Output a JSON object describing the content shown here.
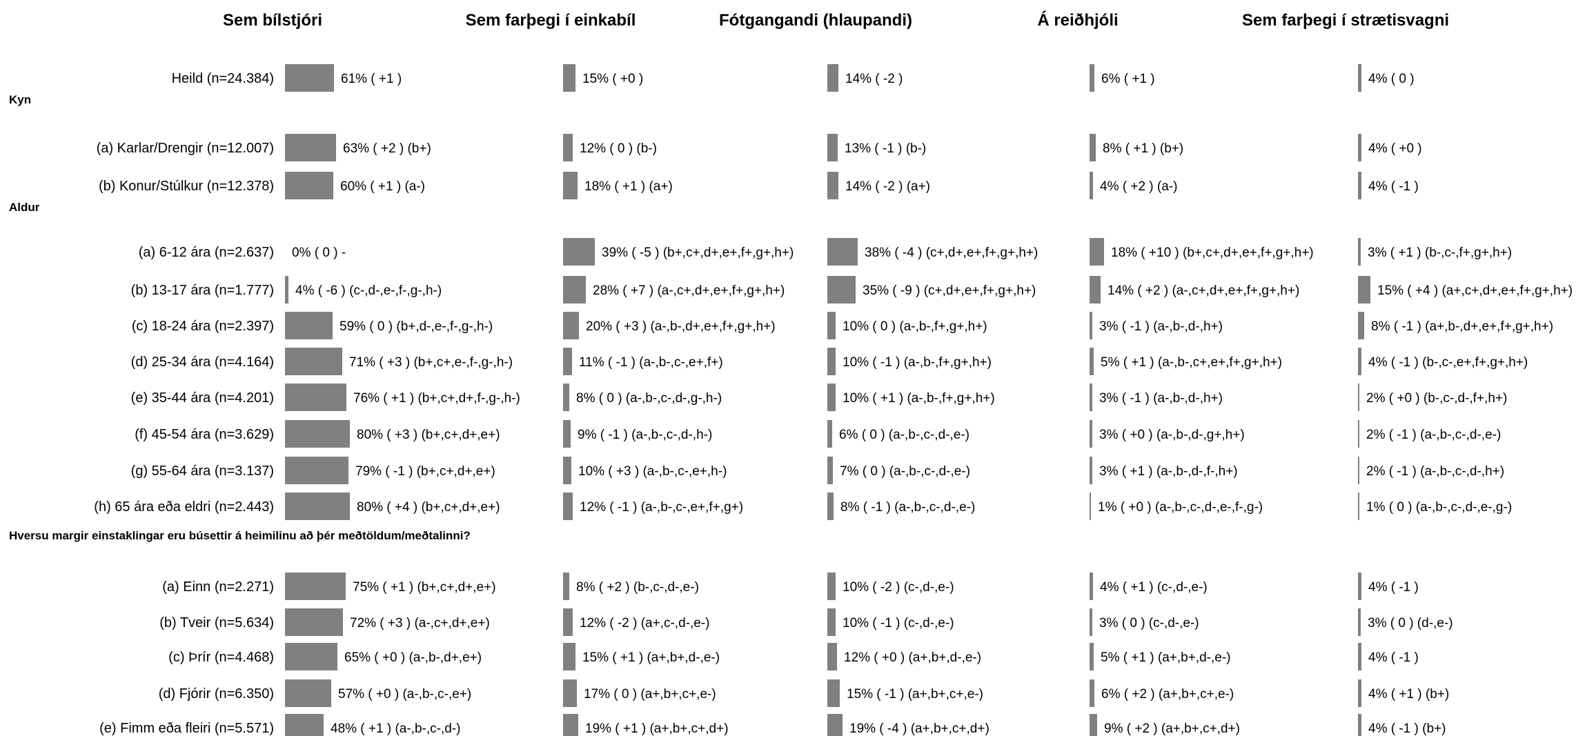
{
  "chart_data": {
    "type": "bar",
    "orientation": "horizontal",
    "columns": [
      {
        "key": "bilstjori",
        "label": "Sem bílstjóri"
      },
      {
        "key": "einkabil",
        "label": "Sem farþegi í einkabíl"
      },
      {
        "key": "fotgangandi",
        "label": "Fótgangandi (hlaupandi)"
      },
      {
        "key": "reidhjol",
        "label": "Á reiðhjóli"
      },
      {
        "key": "straetisvagn",
        "label": "Sem farþegi í strætisvagni"
      }
    ],
    "groups": [
      {
        "label": "",
        "rows": [
          {
            "label": "Heild (n=24.384)",
            "cells": [
              {
                "value": 61,
                "text": "61% ( +1 )"
              },
              {
                "value": 15,
                "text": "15% ( +0 )"
              },
              {
                "value": 14,
                "text": "14% ( -2 )"
              },
              {
                "value": 6,
                "text": "6% ( +1 )"
              },
              {
                "value": 4,
                "text": "4% ( 0 )"
              }
            ]
          }
        ]
      },
      {
        "label": "Kyn",
        "rows": [
          {
            "label": "(a) Karlar/Drengir (n=12.007)",
            "cells": [
              {
                "value": 63,
                "text": "63% ( +2 ) (b+)"
              },
              {
                "value": 12,
                "text": "12% ( 0 ) (b-)"
              },
              {
                "value": 13,
                "text": "13% ( -1 ) (b-)"
              },
              {
                "value": 8,
                "text": "8% ( +1 ) (b+)"
              },
              {
                "value": 4,
                "text": "4% ( +0 )"
              }
            ]
          },
          {
            "label": "(b) Konur/Stúlkur (n=12.378)",
            "cells": [
              {
                "value": 60,
                "text": "60% ( +1 ) (a-)"
              },
              {
                "value": 18,
                "text": "18% ( +1 ) (a+)"
              },
              {
                "value": 14,
                "text": "14% ( -2 ) (a+)"
              },
              {
                "value": 4,
                "text": "4% ( +2 ) (a-)"
              },
              {
                "value": 4,
                "text": "4% ( -1 )"
              }
            ]
          }
        ]
      },
      {
        "label": "Aldur",
        "rows": [
          {
            "label": "(a) 6-12 ára (n=2.637)",
            "cells": [
              {
                "value": 0,
                "text": "0% ( 0 ) -"
              },
              {
                "value": 39,
                "text": "39% ( -5 ) (b+,c+,d+,e+,f+,g+,h+)"
              },
              {
                "value": 38,
                "text": "38% ( -4 ) (c+,d+,e+,f+,g+,h+)"
              },
              {
                "value": 18,
                "text": "18% ( +10 ) (b+,c+,d+,e+,f+,g+,h+)"
              },
              {
                "value": 3,
                "text": "3% ( +1 ) (b-,c-,f+,g+,h+)"
              }
            ]
          },
          {
            "label": "(b) 13-17 ára (n=1.777)",
            "cells": [
              {
                "value": 4,
                "text": "4% ( -6 ) (c-,d-,e-,f-,g-,h-)"
              },
              {
                "value": 28,
                "text": "28% ( +7 ) (a-,c+,d+,e+,f+,g+,h+)"
              },
              {
                "value": 35,
                "text": "35% ( -9 ) (c+,d+,e+,f+,g+,h+)"
              },
              {
                "value": 14,
                "text": "14% ( +2 ) (a-,c+,d+,e+,f+,g+,h+)"
              },
              {
                "value": 15,
                "text": "15% ( +4 ) (a+,c+,d+,e+,f+,g+,h+)"
              }
            ]
          },
          {
            "label": "(c) 18-24 ára (n=2.397)",
            "cells": [
              {
                "value": 59,
                "text": "59% ( 0 ) (b+,d-,e-,f-,g-,h-)"
              },
              {
                "value": 20,
                "text": "20% ( +3 ) (a-,b-,d+,e+,f+,g+,h+)"
              },
              {
                "value": 10,
                "text": "10% ( 0 ) (a-,b-,f+,g+,h+)"
              },
              {
                "value": 3,
                "text": "3% ( -1 ) (a-,b-,d-,h+)"
              },
              {
                "value": 8,
                "text": "8% ( -1 ) (a+,b-,d+,e+,f+,g+,h+)"
              }
            ]
          },
          {
            "label": "(d) 25-34 ára (n=4.164)",
            "cells": [
              {
                "value": 71,
                "text": "71% ( +3 ) (b+,c+,e-,f-,g-,h-)"
              },
              {
                "value": 11,
                "text": "11% ( -1 ) (a-,b-,c-,e+,f+)"
              },
              {
                "value": 10,
                "text": "10% ( -1 ) (a-,b-,f+,g+,h+)"
              },
              {
                "value": 5,
                "text": "5% ( +1 ) (a-,b-,c+,e+,f+,g+,h+)"
              },
              {
                "value": 4,
                "text": "4% ( -1 ) (b-,c-,e+,f+,g+,h+)"
              }
            ]
          },
          {
            "label": "(e) 35-44 ára (n=4.201)",
            "cells": [
              {
                "value": 76,
                "text": "76% ( +1 ) (b+,c+,d+,f-,g-,h-)"
              },
              {
                "value": 8,
                "text": "8% ( 0 ) (a-,b-,c-,d-,g-,h-)"
              },
              {
                "value": 10,
                "text": "10% ( +1 ) (a-,b-,f+,g+,h+)"
              },
              {
                "value": 3,
                "text": "3% ( -1 ) (a-,b-,d-,h+)"
              },
              {
                "value": 2,
                "text": "2% ( +0 ) (b-,c-,d-,f+,h+)"
              }
            ]
          },
          {
            "label": "(f) 45-54 ára (n=3.629)",
            "cells": [
              {
                "value": 80,
                "text": "80% ( +3 ) (b+,c+,d+,e+)"
              },
              {
                "value": 9,
                "text": "9% ( -1 ) (a-,b-,c-,d-,h-)"
              },
              {
                "value": 6,
                "text": "6% ( 0 ) (a-,b-,c-,d-,e-)"
              },
              {
                "value": 3,
                "text": "3% ( +0 ) (a-,b-,d-,g+,h+)"
              },
              {
                "value": 2,
                "text": "2% ( -1 ) (a-,b-,c-,d-,e-)"
              }
            ]
          },
          {
            "label": "(g) 55-64 ára (n=3.137)",
            "cells": [
              {
                "value": 79,
                "text": "79% ( -1 ) (b+,c+,d+,e+)"
              },
              {
                "value": 10,
                "text": "10% ( +3 ) (a-,b-,c-,e+,h-)"
              },
              {
                "value": 7,
                "text": "7% ( 0 ) (a-,b-,c-,d-,e-)"
              },
              {
                "value": 3,
                "text": "3% ( +1 ) (a-,b-,d-,f-,h+)"
              },
              {
                "value": 2,
                "text": "2% ( -1 ) (a-,b-,c-,d-,h+)"
              }
            ]
          },
          {
            "label": "(h) 65 ára eða eldri (n=2.443)",
            "cells": [
              {
                "value": 80,
                "text": "80% ( +4 ) (b+,c+,d+,e+)"
              },
              {
                "value": 12,
                "text": "12% ( -1 ) (a-,b-,c-,e+,f+,g+)"
              },
              {
                "value": 8,
                "text": "8% ( -1 ) (a-,b-,c-,d-,e-)"
              },
              {
                "value": 1,
                "text": "1% ( +0 ) (a-,b-,c-,d-,e-,f-,g-)"
              },
              {
                "value": 1,
                "text": "1% ( 0 ) (a-,b-,c-,d-,e-,g-)"
              }
            ]
          }
        ]
      },
      {
        "label": "Hversu margir einstaklingar eru búsettir á heimilinu að þér meðtöldum/meðtalinni?",
        "rows": [
          {
            "label": "(a) Einn (n=2.271)",
            "cells": [
              {
                "value": 75,
                "text": "75% ( +1 ) (b+,c+,d+,e+)"
              },
              {
                "value": 8,
                "text": "8% ( +2 ) (b-,c-,d-,e-)"
              },
              {
                "value": 10,
                "text": "10% ( -2 ) (c-,d-,e-)"
              },
              {
                "value": 4,
                "text": "4% ( +1 ) (c-,d-,e-)"
              },
              {
                "value": 4,
                "text": "4% ( -1 )"
              }
            ]
          },
          {
            "label": "(b) Tveir (n=5.634)",
            "cells": [
              {
                "value": 72,
                "text": "72% ( +3 ) (a-,c+,d+,e+)"
              },
              {
                "value": 12,
                "text": "12% ( -2 ) (a+,c-,d-,e-)"
              },
              {
                "value": 10,
                "text": "10% ( -1 ) (c-,d-,e-)"
              },
              {
                "value": 3,
                "text": "3% ( 0 ) (c-,d-,e-)"
              },
              {
                "value": 3,
                "text": "3% ( 0 ) (d-,e-)"
              }
            ]
          },
          {
            "label": "(c) Þrír (n=4.468)",
            "cells": [
              {
                "value": 65,
                "text": "65% ( +0 ) (a-,b-,d+,e+)"
              },
              {
                "value": 15,
                "text": "15% ( +1 ) (a+,b+,d-,e-)"
              },
              {
                "value": 12,
                "text": "12% ( +0 ) (a+,b+,d-,e-)"
              },
              {
                "value": 5,
                "text": "5% ( +1 ) (a+,b+,d-,e-)"
              },
              {
                "value": 4,
                "text": "4% ( -1 )"
              }
            ]
          },
          {
            "label": "(d) Fjórir (n=6.350)",
            "cells": [
              {
                "value": 57,
                "text": "57% ( +0 ) (a-,b-,c-,e+)"
              },
              {
                "value": 17,
                "text": "17% ( 0 ) (a+,b+,c+,e-)"
              },
              {
                "value": 15,
                "text": "15% ( -1 ) (a+,b+,c+,e-)"
              },
              {
                "value": 6,
                "text": "6% ( +2 ) (a+,b+,c+,e-)"
              },
              {
                "value": 4,
                "text": "4% ( +1 ) (b+)"
              }
            ]
          },
          {
            "label": "(e) Fimm eða fleiri (n=5.571)",
            "cells": [
              {
                "value": 48,
                "text": "48% ( +1 ) (a-,b-,c-,d-)"
              },
              {
                "value": 19,
                "text": "19% ( +1 ) (a+,b+,c+,d+)"
              },
              {
                "value": 19,
                "text": "19% ( -4 ) (a+,b+,c+,d+)"
              },
              {
                "value": 9,
                "text": "9% ( +2 ) (a+,b+,c+,d+)"
              },
              {
                "value": 4,
                "text": "4% ( -1 ) (b+)"
              }
            ]
          }
        ]
      }
    ],
    "bar_color": "#808080",
    "value_unit": "%",
    "grid": false,
    "legend": "none"
  }
}
